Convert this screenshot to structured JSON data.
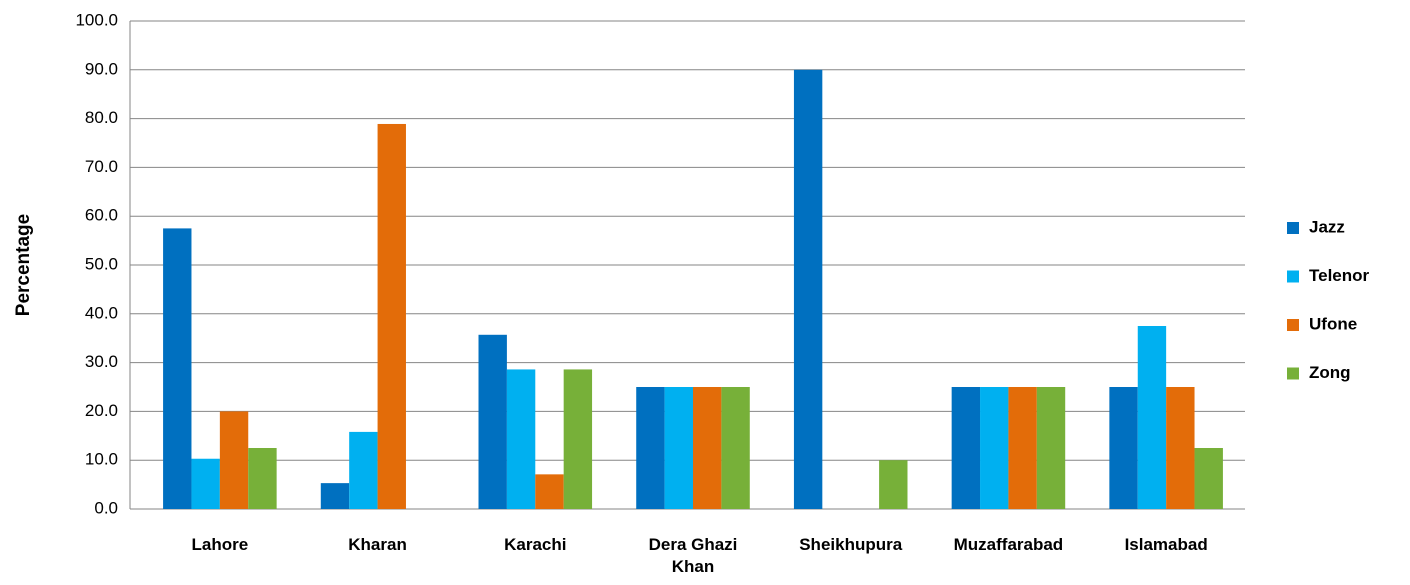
{
  "chart_data": {
    "type": "bar",
    "y_label": "Percentage",
    "categories": [
      "Lahore",
      "Kharan",
      "Karachi",
      "Dera Ghazi Khan",
      "Sheikhupura",
      "Muzaffarabad",
      "Islamabad"
    ],
    "series": [
      {
        "name": "Jazz",
        "color": "#0070c0",
        "values": [
          57.5,
          5.3,
          35.7,
          25,
          90,
          25,
          25
        ]
      },
      {
        "name": "Telenor",
        "color": "#00b0f0",
        "values": [
          10.3,
          15.8,
          28.6,
          25,
          0,
          25,
          37.5
        ]
      },
      {
        "name": "Ufone",
        "color": "#e36c09",
        "values": [
          20,
          78.9,
          7.1,
          25,
          0,
          25,
          25
        ]
      },
      {
        "name": "Zong",
        "color": "#77b039",
        "values": [
          12.5,
          0,
          28.6,
          25,
          10,
          25,
          12.5
        ]
      }
    ],
    "ylim": [
      0,
      100
    ],
    "yticks": [
      {
        "value": 0,
        "label": "0.0"
      },
      {
        "value": 10,
        "label": "10.0"
      },
      {
        "value": 20,
        "label": "20.0"
      },
      {
        "value": 30,
        "label": "30.0"
      },
      {
        "value": 40,
        "label": "40.0"
      },
      {
        "value": 50,
        "label": "50.0"
      },
      {
        "value": 60,
        "label": "60.0"
      },
      {
        "value": 70,
        "label": "70.0"
      },
      {
        "value": 80,
        "label": "80.0"
      },
      {
        "value": 90,
        "label": "90.0"
      },
      {
        "value": 100,
        "label": "100.0"
      }
    ],
    "grid": true,
    "legend": "right"
  }
}
